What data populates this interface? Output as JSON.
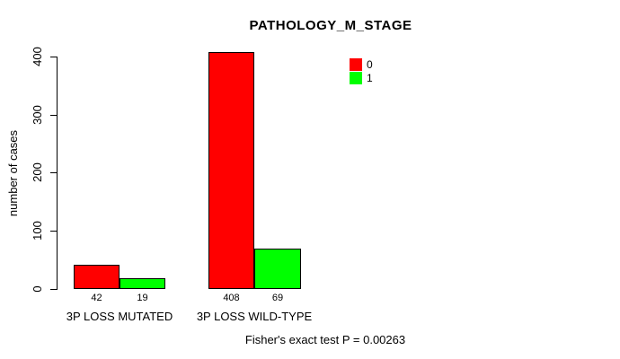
{
  "chart_data": {
    "type": "bar",
    "title": "PATHOLOGY_M_STAGE",
    "ylabel": "number of cases",
    "xlabel": "",
    "categories": [
      "3P LOSS MUTATED",
      "3P LOSS WILD-TYPE"
    ],
    "series": [
      {
        "name": "0",
        "color": "#FF0000",
        "values": [
          42,
          408
        ]
      },
      {
        "name": "1",
        "color": "#00FF00",
        "values": [
          19,
          69
        ]
      }
    ],
    "ylim": [
      0,
      400
    ],
    "yticks": [
      0,
      100,
      200,
      300,
      400
    ],
    "grid": false,
    "legend_position": "top-right",
    "annotation": "Fisher's exact test P = 0.00263"
  }
}
